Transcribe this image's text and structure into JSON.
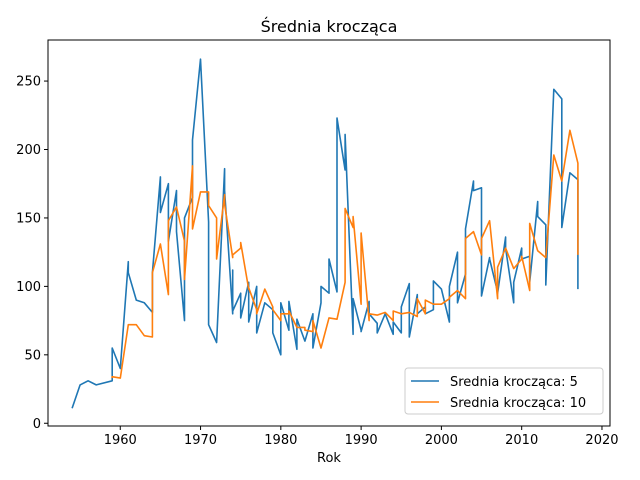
{
  "chart_data": {
    "type": "line",
    "title": "Średnia krocząca",
    "xlabel": "Rok",
    "ylabel": "",
    "xlim": [
      1951,
      2021
    ],
    "ylim": [
      -2,
      280
    ],
    "xticks": [
      1960,
      1970,
      1980,
      1990,
      2000,
      2010,
      2020
    ],
    "yticks": [
      0,
      50,
      100,
      150,
      200,
      250
    ],
    "grid": false,
    "legend_position": "lower-right",
    "series": [
      {
        "name": "Srednia krocząca: 5",
        "color": "#1f77b4",
        "x": [
          1954,
          1955,
          1956,
          1957,
          1959,
          1959,
          1960,
          1961,
          1961,
          1962,
          1963,
          1964,
          1964,
          1965,
          1965,
          1966,
          1966,
          1967,
          1967,
          1968,
          1968,
          1969,
          1969,
          1970,
          1971,
          1971,
          1972,
          1973,
          1973,
          1974,
          1974,
          1974,
          1975,
          1975,
          1976,
          1976,
          1977,
          1977,
          1978,
          1979,
          1979,
          1980,
          1980,
          1981,
          1981,
          1982,
          1982,
          1983,
          1984,
          1984,
          1985,
          1985,
          1986,
          1986,
          1987,
          1987,
          1988,
          1988,
          1989,
          1989,
          1990,
          1990,
          1991,
          1991,
          1992,
          1992,
          1993,
          1994,
          1994,
          1995,
          1995,
          1996,
          1996,
          1997,
          1997,
          1998,
          1998,
          1999,
          1999,
          2000,
          2001,
          2001,
          2002,
          2002,
          2003,
          2003,
          2004,
          2004,
          2005,
          2005,
          2006,
          2006,
          2007,
          2007,
          2008,
          2008,
          2009,
          2009,
          2010,
          2010,
          2011,
          2011,
          2012,
          2012,
          2013,
          2013,
          2014,
          2015,
          2015,
          2016,
          2017,
          2017
        ],
        "y": [
          11,
          28,
          31,
          28,
          31,
          55,
          40,
          118,
          110,
          90,
          88,
          81,
          110,
          180,
          154,
          175,
          133,
          170,
          140,
          75,
          150,
          165,
          207,
          266,
          147,
          72,
          59,
          186,
          170,
          80,
          112,
          82,
          95,
          77,
          103,
          74,
          100,
          66,
          88,
          83,
          66,
          50,
          88,
          68,
          89,
          54,
          76,
          60,
          80,
          55,
          88,
          100,
          95,
          120,
          96,
          223,
          185,
          211,
          65,
          91,
          68,
          67,
          89,
          80,
          73,
          66,
          80,
          65,
          74,
          66,
          85,
          102,
          63,
          94,
          80,
          85,
          80,
          83,
          104,
          98,
          74,
          100,
          125,
          88,
          109,
          142,
          177,
          170,
          172,
          93,
          121,
          120,
          96,
          95,
          136,
          128,
          88,
          103,
          128,
          120,
          122,
          103,
          162,
          151,
          145,
          101,
          244,
          237,
          143,
          183,
          178,
          98
        ]
      },
      {
        "name": "Srednia krocząca: 10",
        "color": "#ff7f0e",
        "x": [
          1959,
          1959,
          1960,
          1961,
          1962,
          1963,
          1964,
          1964,
          1965,
          1966,
          1966,
          1967,
          1968,
          1968,
          1969,
          1969,
          1970,
          1971,
          1971,
          1972,
          1972,
          1973,
          1973,
          1974,
          1974,
          1975,
          1975,
          1976,
          1976,
          1977,
          1977,
          1978,
          1979,
          1979,
          1980,
          1980,
          1981,
          1981,
          1982,
          1983,
          1983,
          1984,
          1984,
          1985,
          1986,
          1987,
          1988,
          1988,
          1989,
          1989,
          1990,
          1990,
          1991,
          1991,
          1992,
          1993,
          1994,
          1994,
          1995,
          1996,
          1997,
          1997,
          1998,
          1998,
          1999,
          2000,
          2001,
          2001,
          2002,
          2003,
          2003,
          2004,
          2005,
          2005,
          2006,
          2007,
          2007,
          2008,
          2009,
          2010,
          2010,
          2011,
          2011,
          2012,
          2013,
          2014,
          2015,
          2016,
          2017,
          2017
        ],
        "y": [
          33,
          34,
          33,
          72,
          72,
          64,
          63,
          110,
          131,
          94,
          148,
          158,
          133,
          105,
          188,
          142,
          169,
          169,
          159,
          150,
          120,
          167,
          160,
          121,
          123,
          128,
          132,
          98,
          99,
          83,
          80,
          98,
          85,
          83,
          75,
          80,
          80,
          82,
          70,
          70,
          68,
          67,
          75,
          55,
          77,
          76,
          103,
          157,
          143,
          151,
          87,
          139,
          75,
          80,
          79,
          81,
          75,
          82,
          80,
          81,
          78,
          91,
          80,
          90,
          87,
          87,
          91,
          92,
          97,
          91,
          135,
          140,
          123,
          135,
          148,
          91,
          114,
          128,
          113,
          120,
          122,
          97,
          146,
          126,
          121,
          196,
          177,
          214,
          190,
          123
        ]
      }
    ]
  }
}
